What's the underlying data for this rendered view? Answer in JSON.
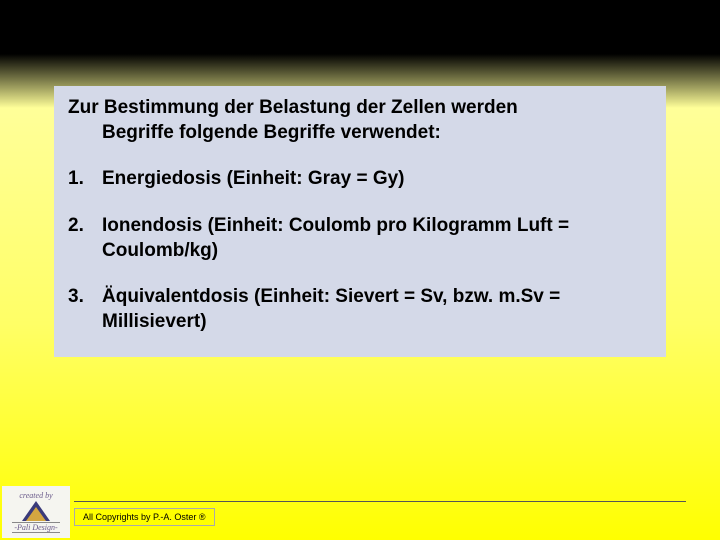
{
  "content": {
    "intro_line1": "Zur Bestimmung der Belastung der Zellen werden",
    "intro_line2": "Begriffe folgende Begriffe verwendet:",
    "items": [
      "Energiedosis (Einheit: Gray = Gy)",
      "Ionendosis (Einheit: Coulomb pro Kilogramm Luft = Coulomb/kg)",
      "Äquivalentdosis (Einheit: Sievert = Sv, bzw. m.Sv = Millisievert)"
    ]
  },
  "footer": {
    "copyright": "All Copyrights by P.-A. Oster ®"
  },
  "logo": {
    "top_text": "created by",
    "bottom_text": "-Pali Design-"
  },
  "colors": {
    "content_box_bg": "#d4d9e8",
    "copyright_bg": "#ffff00",
    "text": "#000000"
  }
}
